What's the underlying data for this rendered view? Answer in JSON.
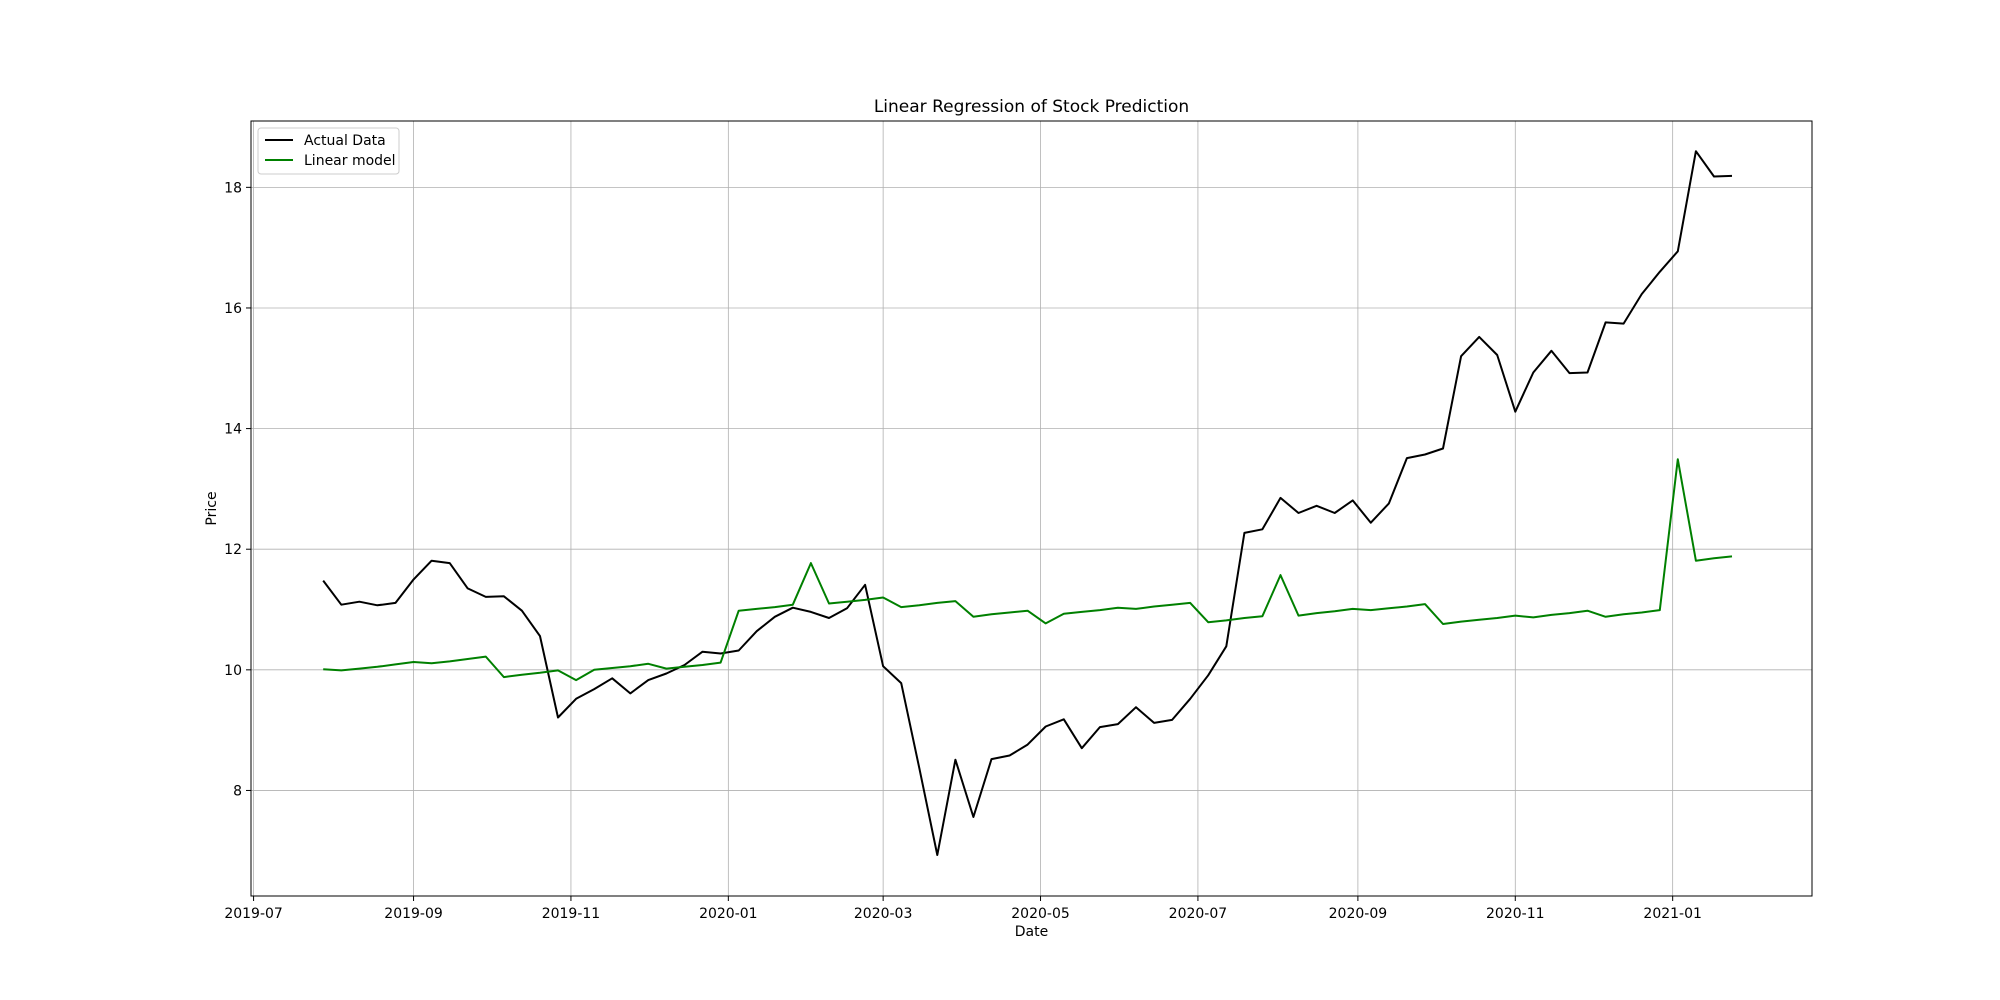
{
  "chart_data": {
    "type": "line",
    "title": "Linear Regression of Stock Prediction",
    "xlabel": "Date",
    "ylabel": "Price",
    "xlim": [
      "2019-06-30",
      "2021-02-24"
    ],
    "ylim": [
      6.25,
      19.1
    ],
    "grid": true,
    "legend_position": "top-left",
    "x_ticks": [
      "2019-07-01",
      "2019-09-01",
      "2019-11-01",
      "2020-01-01",
      "2020-03-01",
      "2020-05-01",
      "2020-07-01",
      "2020-09-01",
      "2020-11-01",
      "2021-01-01"
    ],
    "x_tick_labels": [
      "2019-07",
      "2019-09",
      "2019-11",
      "2020-01",
      "2020-03",
      "2020-05",
      "2020-07",
      "2020-09",
      "2020-11",
      "2021-01"
    ],
    "y_ticks": [
      8,
      10,
      12,
      14,
      16,
      18
    ],
    "y_tick_labels": [
      "8",
      "10",
      "12",
      "14",
      "16",
      "18"
    ],
    "x": [
      "2019-07-28",
      "2019-08-04",
      "2019-08-11",
      "2019-08-18",
      "2019-08-25",
      "2019-09-01",
      "2019-09-08",
      "2019-09-15",
      "2019-09-22",
      "2019-09-29",
      "2019-10-06",
      "2019-10-13",
      "2019-10-20",
      "2019-10-27",
      "2019-11-03",
      "2019-11-10",
      "2019-11-17",
      "2019-11-24",
      "2019-12-01",
      "2019-12-08",
      "2019-12-15",
      "2019-12-22",
      "2019-12-29",
      "2020-01-05",
      "2020-01-12",
      "2020-01-19",
      "2020-01-26",
      "2020-02-02",
      "2020-02-09",
      "2020-02-16",
      "2020-02-23",
      "2020-03-01",
      "2020-03-08",
      "2020-03-15",
      "2020-03-22",
      "2020-03-29",
      "2020-04-05",
      "2020-04-12",
      "2020-04-19",
      "2020-04-26",
      "2020-05-03",
      "2020-05-10",
      "2020-05-17",
      "2020-05-24",
      "2020-05-31",
      "2020-06-07",
      "2020-06-14",
      "2020-06-21",
      "2020-06-28",
      "2020-07-05",
      "2020-07-12",
      "2020-07-19",
      "2020-07-26",
      "2020-08-02",
      "2020-08-09",
      "2020-08-16",
      "2020-08-23",
      "2020-08-30",
      "2020-09-06",
      "2020-09-13",
      "2020-09-20",
      "2020-09-27",
      "2020-10-04",
      "2020-10-11",
      "2020-10-18",
      "2020-10-25",
      "2020-11-01",
      "2020-11-08",
      "2020-11-15",
      "2020-11-22",
      "2020-11-29",
      "2020-12-06",
      "2020-12-13",
      "2020-12-20",
      "2020-12-27",
      "2021-01-03",
      "2021-01-10",
      "2021-01-17",
      "2021-01-24"
    ],
    "series": [
      {
        "name": "Actual Data",
        "color": "#000000",
        "values": [
          11.48,
          11.08,
          11.13,
          11.07,
          11.11,
          11.5,
          11.81,
          11.77,
          11.35,
          11.21,
          11.22,
          10.98,
          10.56,
          9.21,
          9.52,
          9.68,
          9.86,
          9.61,
          9.83,
          9.94,
          10.08,
          10.3,
          10.27,
          10.32,
          10.64,
          10.88,
          11.03,
          10.96,
          10.86,
          11.02,
          11.41,
          10.06,
          9.78,
          8.37,
          6.93,
          8.51,
          7.56,
          8.52,
          8.58,
          8.76,
          9.06,
          9.18,
          8.7,
          9.05,
          9.1,
          9.38,
          9.12,
          9.17,
          9.52,
          9.91,
          10.39,
          12.27,
          12.33,
          12.85,
          12.6,
          12.72,
          12.6,
          12.81,
          12.44,
          12.76,
          13.51,
          13.57,
          13.67,
          15.2,
          15.52,
          15.22,
          14.28,
          14.93,
          15.29,
          14.92,
          14.93,
          15.76,
          15.74,
          16.23,
          16.6,
          16.94,
          18.6,
          18.18,
          18.19
        ]
      },
      {
        "name": "Linear model",
        "color": "#008000",
        "values": [
          10.01,
          9.99,
          10.02,
          10.05,
          10.09,
          10.13,
          10.11,
          10.14,
          10.18,
          10.22,
          9.88,
          9.92,
          9.95,
          9.99,
          9.83,
          10.0,
          10.03,
          10.06,
          10.1,
          10.02,
          10.05,
          10.08,
          10.12,
          10.98,
          11.01,
          11.04,
          11.08,
          11.77,
          11.1,
          11.13,
          11.16,
          11.2,
          11.04,
          11.07,
          11.11,
          11.14,
          10.88,
          10.92,
          10.95,
          10.98,
          10.77,
          10.93,
          10.96,
          10.99,
          11.03,
          11.01,
          11.05,
          11.08,
          11.11,
          10.79,
          10.82,
          10.86,
          10.89,
          11.57,
          10.9,
          10.94,
          10.97,
          11.01,
          10.99,
          11.02,
          11.05,
          11.09,
          10.76,
          10.8,
          10.83,
          10.86,
          10.9,
          10.87,
          10.91,
          10.94,
          10.98,
          10.88,
          10.92,
          10.95,
          10.99,
          13.49,
          11.81,
          11.85,
          11.88
        ]
      }
    ]
  }
}
